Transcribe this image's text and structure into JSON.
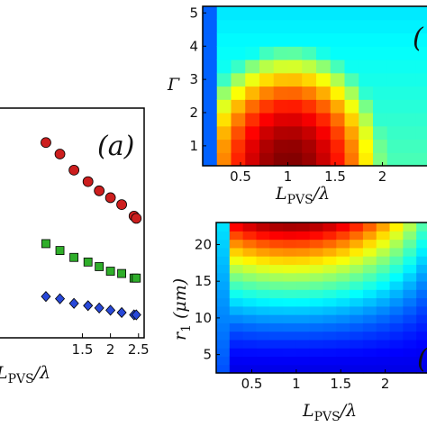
{
  "chart_data": [
    {
      "panel": "a",
      "type": "scatter",
      "panel_label": "(a)",
      "xlabel": "L_PVS/λ",
      "xlabel_main": "L",
      "xlabel_sub": "PVS",
      "xlabel_tail": "/λ",
      "xlim": [
        0.0,
        2.6
      ],
      "xticks": [
        "1.5",
        "2",
        "2.5"
      ],
      "xtick_values": [
        1.5,
        2.0,
        2.5
      ],
      "ylim": [
        0,
        1
      ],
      "series": [
        {
          "marker": "circle",
          "color": "#cc1e1e",
          "x": [
            0.85,
            1.1,
            1.35,
            1.6,
            1.8,
            2.0,
            2.2,
            2.42,
            2.46
          ],
          "y": [
            0.85,
            0.8,
            0.73,
            0.68,
            0.64,
            0.61,
            0.58,
            0.53,
            0.52
          ]
        },
        {
          "marker": "square",
          "color": "#2fae2a",
          "x": [
            0.85,
            1.1,
            1.35,
            1.6,
            1.8,
            2.0,
            2.2,
            2.42,
            2.46
          ],
          "y": [
            0.41,
            0.38,
            0.35,
            0.33,
            0.31,
            0.29,
            0.28,
            0.26,
            0.26
          ]
        },
        {
          "marker": "diamond",
          "color": "#2848d8",
          "x": [
            0.85,
            1.1,
            1.35,
            1.6,
            1.8,
            2.0,
            2.2,
            2.42,
            2.46
          ],
          "y": [
            0.18,
            0.17,
            0.15,
            0.14,
            0.13,
            0.12,
            0.11,
            0.1,
            0.1
          ]
        }
      ]
    },
    {
      "panel": "b",
      "type": "heatmap",
      "panel_label": "(",
      "xlabel": "L_PVS/λ",
      "xlabel_main": "L",
      "xlabel_sub": "PVS",
      "xlabel_tail": "/λ",
      "ylabel": "Γ",
      "xlim": [
        0.1,
        2.5
      ],
      "ylim": [
        0.4,
        5.2
      ],
      "xticks": [
        "0.5",
        "1",
        "1.5",
        "2"
      ],
      "xtick_values": [
        0.5,
        1.0,
        1.5,
        2.0
      ],
      "yticks": [
        "1",
        "2",
        "3",
        "4",
        "5"
      ],
      "ytick_values": [
        1,
        2,
        3,
        4,
        5
      ],
      "colormap": "jet",
      "grid": [
        16,
        12
      ]
    },
    {
      "panel": "c",
      "type": "heatmap",
      "panel_label": "(",
      "xlabel": "L_PVS/λ",
      "xlabel_main": "L",
      "xlabel_sub": "PVS",
      "xlabel_tail": "/λ",
      "ylabel": "r_1 (μm)",
      "ylabel_main": "r",
      "ylabel_sub": "1",
      "ylabel_tail": "(μm)",
      "xlim": [
        0.1,
        2.5
      ],
      "ylim": [
        2.5,
        23.0
      ],
      "xticks": [
        "0.5",
        "1",
        "1.5",
        "2"
      ],
      "xtick_values": [
        0.5,
        1.0,
        1.5,
        2.0
      ],
      "yticks": [
        "5",
        "10",
        "15",
        "20"
      ],
      "ytick_values": [
        5,
        10,
        15,
        20
      ],
      "colormap": "jet",
      "grid": [
        16,
        18
      ]
    }
  ]
}
